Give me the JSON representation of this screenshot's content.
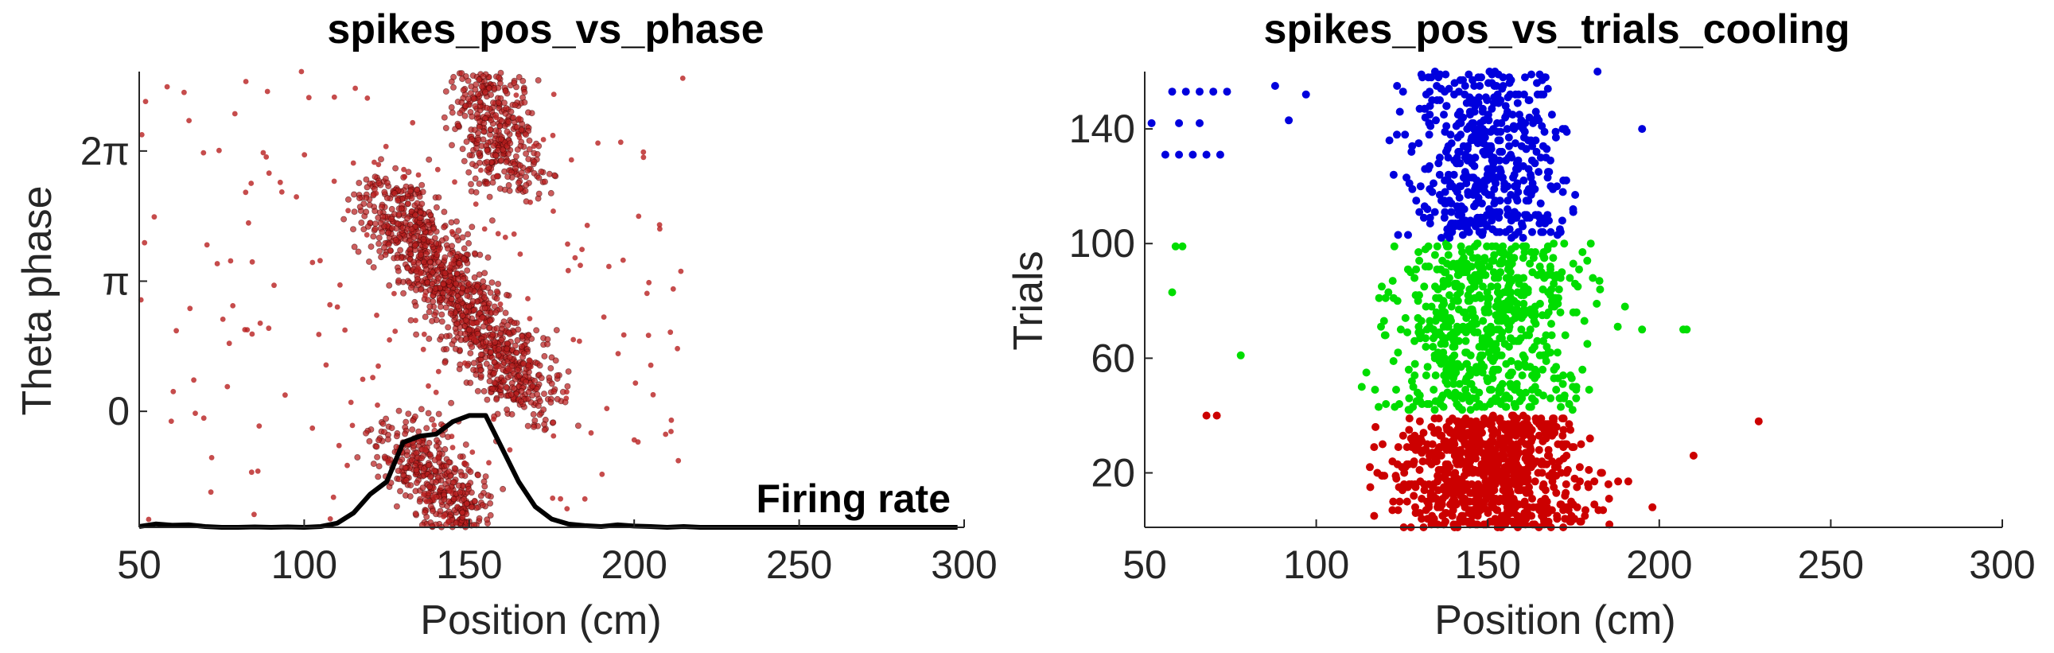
{
  "chart_data": [
    {
      "type": "scatter",
      "title": "spikes_pos_vs_phase",
      "xlabel": "Position (cm)",
      "ylabel": "Theta phase",
      "xlim": [
        50,
        300
      ],
      "ylim": [
        -2.8,
        8.2
      ],
      "xticks": [
        50,
        100,
        150,
        200,
        250,
        300
      ],
      "xtick_labels": [
        "50",
        "100",
        "150",
        "200",
        "250",
        "300"
      ],
      "yticks": [
        0,
        3.1416,
        6.2832
      ],
      "ytick_labels": [
        "0",
        "π",
        "2π"
      ],
      "grid": false,
      "point_color": "#b81f1f",
      "spike_clusters": [
        {
          "x_start": 152,
          "x_end": 164,
          "y_start": 8.2,
          "y_end": 5.5,
          "count": 400
        },
        {
          "x_start": 124,
          "x_end": 170,
          "y_start": 5.2,
          "y_end": 0.3,
          "count": 1100
        },
        {
          "x_start": 130,
          "x_end": 150,
          "y_start": -0.5,
          "y_end": -2.8,
          "count": 450
        }
      ],
      "annotations": [
        {
          "text": "Firing rate"
        }
      ],
      "series": [
        {
          "name": "Firing rate",
          "type": "line",
          "color": "#000000",
          "x": [
            50,
            55,
            60,
            65,
            70,
            75,
            80,
            85,
            90,
            95,
            100,
            105,
            110,
            115,
            120,
            125,
            130,
            135,
            140,
            145,
            150,
            155,
            160,
            165,
            170,
            175,
            180,
            185,
            190,
            195,
            200,
            205,
            210,
            215,
            220,
            230,
            240,
            250,
            260,
            270,
            280,
            290,
            298
          ],
          "y": [
            -2.78,
            -2.72,
            -2.75,
            -2.74,
            -2.78,
            -2.8,
            -2.8,
            -2.79,
            -2.8,
            -2.79,
            -2.8,
            -2.78,
            -2.7,
            -2.45,
            -2.0,
            -1.7,
            -0.75,
            -0.6,
            -0.55,
            -0.25,
            -0.1,
            -0.1,
            -0.9,
            -1.7,
            -2.3,
            -2.6,
            -2.72,
            -2.76,
            -2.78,
            -2.74,
            -2.77,
            -2.78,
            -2.8,
            -2.78,
            -2.8,
            -2.8,
            -2.8,
            -2.8,
            -2.8,
            -2.8,
            -2.8,
            -2.8,
            -2.8
          ]
        }
      ]
    },
    {
      "type": "scatter",
      "title": "spikes_pos_vs_trials_cooling",
      "xlabel": "Position (cm)",
      "ylabel": "Trials",
      "xlim": [
        50,
        300
      ],
      "ylim": [
        1,
        160
      ],
      "xticks": [
        50,
        100,
        150,
        200,
        250,
        300
      ],
      "xtick_labels": [
        "50",
        "100",
        "150",
        "200",
        "250",
        "300"
      ],
      "yticks": [
        20,
        60,
        100,
        140
      ],
      "ytick_labels": [
        "20",
        "60",
        "100",
        "140"
      ],
      "grid": false,
      "series": [
        {
          "color": "#cc0000",
          "trials": [
            1,
            40
          ],
          "x_center": 151,
          "x_spread": 14,
          "count": 800,
          "outliers": [
            [
              68,
              40
            ],
            [
              71,
              40
            ],
            [
              210,
              26
            ],
            [
              229,
              38
            ],
            [
              198,
              8
            ]
          ]
        },
        {
          "color": "#00dd00",
          "trials": [
            42,
            100
          ],
          "x_center": 150,
          "x_spread": 14,
          "count": 650,
          "outliers": [
            [
              59,
              99
            ],
            [
              61,
              99
            ],
            [
              58,
              83
            ],
            [
              78,
              61
            ],
            [
              195,
              70
            ],
            [
              207,
              70
            ],
            [
              208,
              70
            ],
            [
              190,
              78
            ]
          ]
        },
        {
          "color": "#0000dd",
          "trials": [
            102,
            160
          ],
          "x_center": 150,
          "x_spread": 11,
          "count": 480,
          "outliers": [
            [
              52,
              142
            ],
            [
              58,
              153
            ],
            [
              62,
              153
            ],
            [
              66,
              153
            ],
            [
              70,
              153
            ],
            [
              74,
              153
            ],
            [
              60,
              142
            ],
            [
              66,
              142
            ],
            [
              56,
              131
            ],
            [
              60,
              131
            ],
            [
              64,
              131
            ],
            [
              68,
              131
            ],
            [
              72,
              131
            ],
            [
              88,
              155
            ],
            [
              92,
              143
            ],
            [
              97,
              152
            ],
            [
              182,
              160
            ],
            [
              195,
              140
            ]
          ]
        }
      ]
    }
  ]
}
